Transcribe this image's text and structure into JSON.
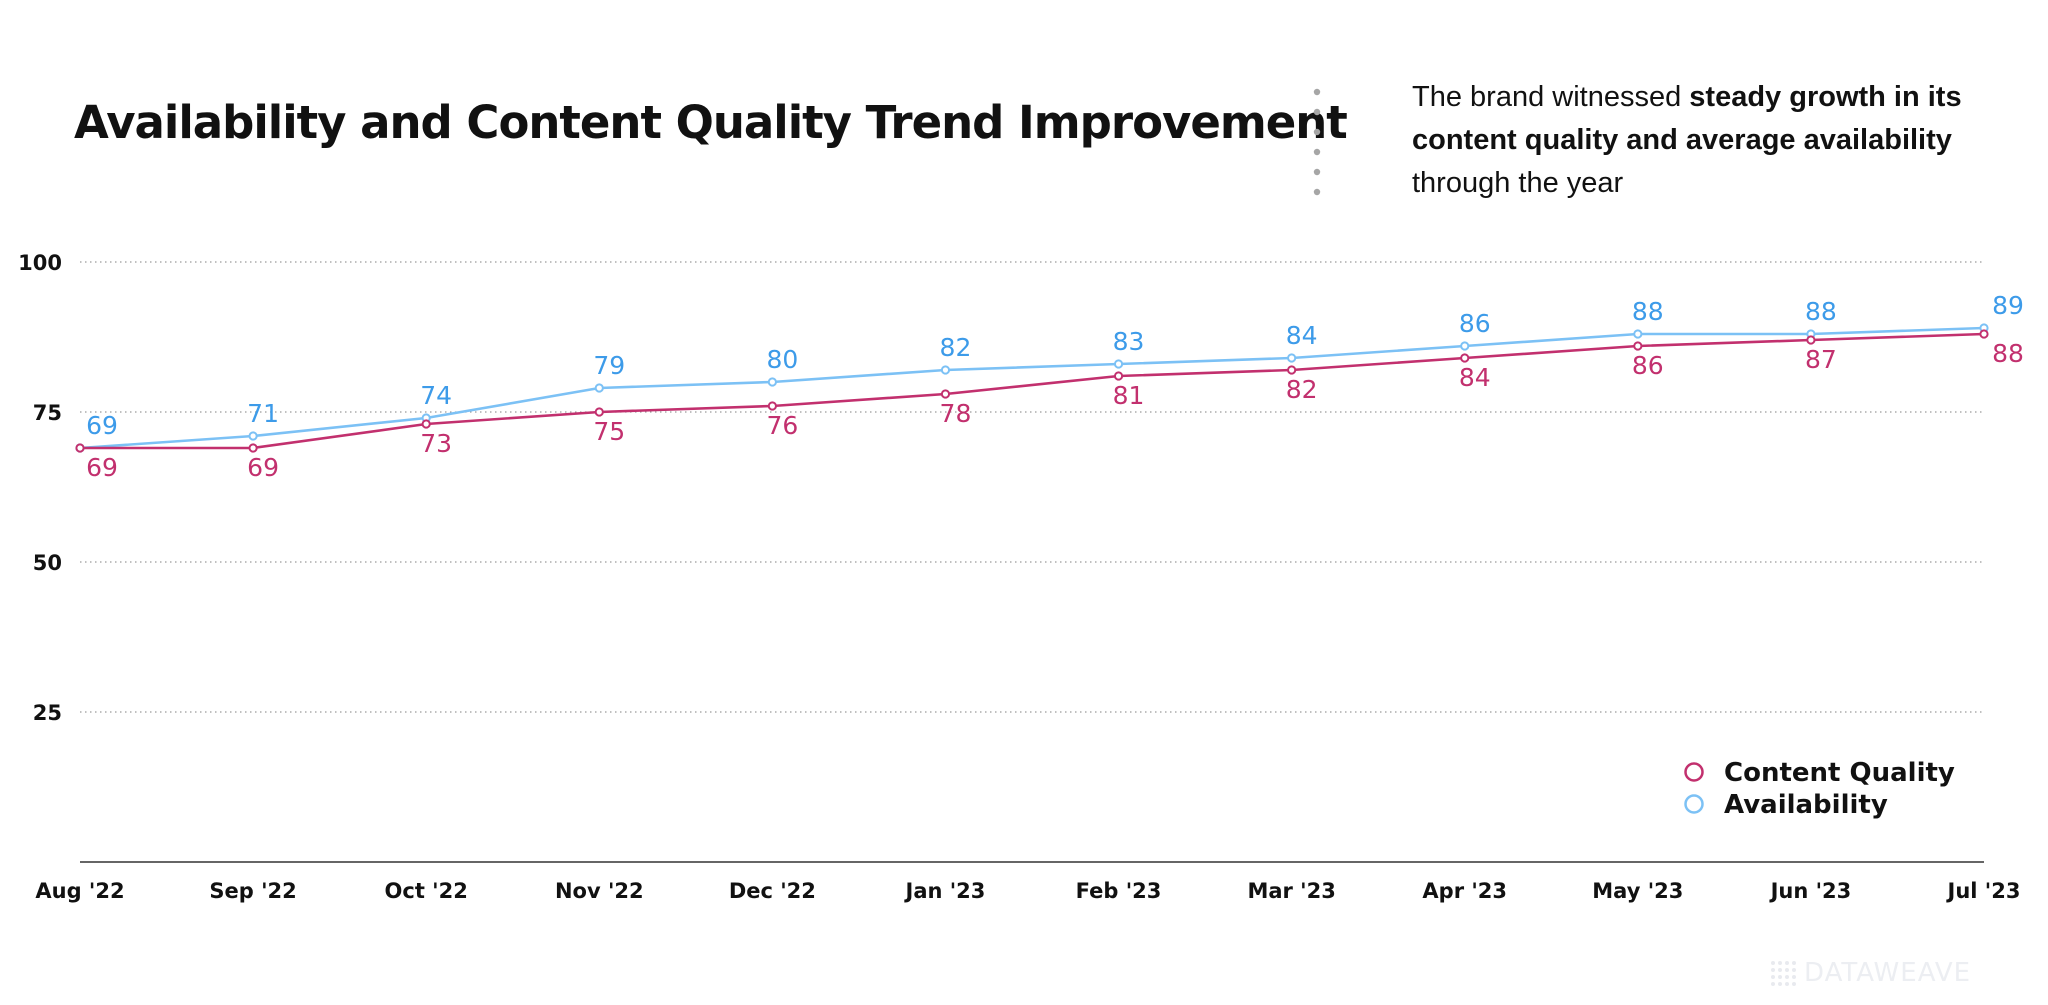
{
  "title": "Availability and Content Quality Trend Improvement",
  "subtitle": {
    "part1": "The brand witnessed ",
    "bold1": "steady growth in its content quality and average availability",
    "part2": " through the year"
  },
  "watermark": "DATAWEAVE",
  "colors": {
    "content_quality": "#c2306e",
    "availability": "#7cc1f5",
    "availability_label": "#3d9be9",
    "grid": "#9a9a9a",
    "axis": "#333333",
    "divider": "#a6a6a6"
  },
  "chart_data": {
    "type": "line",
    "categories": [
      "Aug '22",
      "Sep '22",
      "Oct '22",
      "Nov '22",
      "Dec '22",
      "Jan '23",
      "Feb '23",
      "Mar '23",
      "Apr '23",
      "May '23",
      "Jun '23",
      "Jul '23"
    ],
    "series": [
      {
        "name": "Content Quality",
        "values": [
          69,
          69,
          73,
          75,
          76,
          78,
          81,
          82,
          84,
          86,
          87,
          88
        ]
      },
      {
        "name": "Availability",
        "values": [
          69,
          71,
          74,
          79,
          80,
          82,
          83,
          84,
          86,
          88,
          88,
          89
        ]
      }
    ],
    "yticks": [
      "25",
      "50",
      "75",
      "100"
    ],
    "ylim": [
      0,
      100
    ],
    "grid": true,
    "legend_position": "bottom-right"
  }
}
